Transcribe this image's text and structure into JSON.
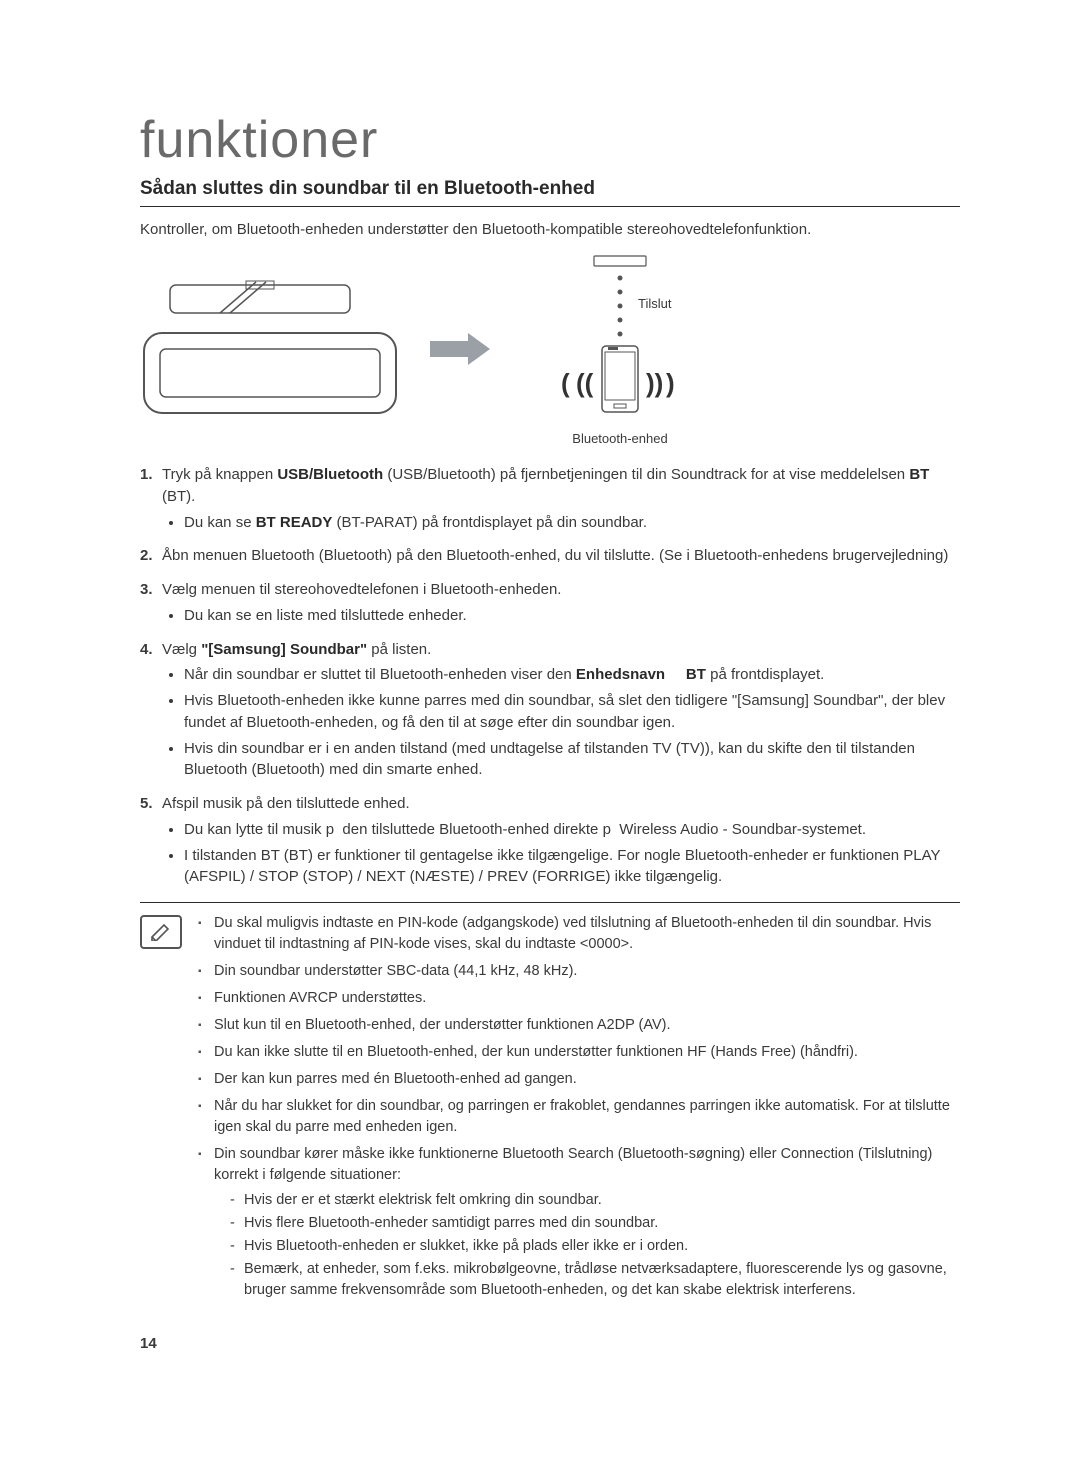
{
  "title": "funktioner",
  "heading": "Sådan sluttes din soundbar til en Bluetooth-enhed",
  "intro": "Kontroller, om Bluetooth-enheden understøtter den Bluetooth-kompatible stereohovedtelefonfunktion.",
  "diagram": {
    "connect_label": "Tilslut",
    "phone_caption": "Bluetooth-enhed"
  },
  "steps": [
    {
      "html": "Tryk på knappen <b>USB/Bluetooth</b> (USB/Bluetooth) på fjernbetjeningen til din Soundtrack for at vise meddelelsen <b>BT</b> (BT).",
      "sub": [
        "Du kan se <b>BT READY</b> (BT-PARAT) på frontdisplayet på din soundbar."
      ]
    },
    {
      "html": "Åbn menuen Bluetooth (Bluetooth) på den Bluetooth-enhed, du vil tilslutte. (Se i Bluetooth-enhedens brugervejledning)",
      "sub": []
    },
    {
      "html": "Vælg menuen til stereohovedtelefonen i Bluetooth-enheden.",
      "sub": [
        "Du kan se en liste med tilsluttede enheder."
      ]
    },
    {
      "html": "Vælg <b>\"[Samsung] Soundbar\"</b> på listen.",
      "sub": [
        "Når din soundbar er sluttet til Bluetooth-enheden viser den <b>Enhedsnavn &nbsp;&nbsp;&nbsp; BT</b> på frontdisplayet.",
        "Hvis Bluetooth-enheden ikke kunne parres med din soundbar, så slet den tidligere \"[Samsung] Soundbar\", der blev fundet af Bluetooth-enheden, og få den til at søge efter din soundbar igen.",
        "Hvis din soundbar er i en anden tilstand (med undtagelse af tilstanden TV (TV)), kan du skifte den til tilstanden Bluetooth (Bluetooth) med din smarte enhed."
      ]
    },
    {
      "html": "Afspil musik på den tilsluttede enhed.",
      "sub": [
        "Du kan lytte til musik p&nbsp; den tilsluttede Bluetooth-enhed direkte p&nbsp; Wireless Audio - Soundbar-systemet.",
        "I tilstanden BT (BT) er funktioner til gentagelse ikke tilgængelige. For nogle Bluetooth-enheder er funktionen PLAY (AFSPIL) / STOP (STOP) / NEXT (NÆSTE) / PREV (FORRIGE) ikke tilgængelig."
      ]
    }
  ],
  "notes": [
    {
      "text": "Du skal muligvis indtaste en PIN-kode (adgangskode) ved tilslutning af Bluetooth-enheden til din soundbar. Hvis vinduet til indtastning af PIN-kode vises, skal du indtaste <0000>."
    },
    {
      "text": "Din soundbar understøtter SBC-data (44,1 kHz, 48 kHz)."
    },
    {
      "text": "Funktionen AVRCP understøttes."
    },
    {
      "text": "Slut kun til en Bluetooth-enhed, der understøtter funktionen A2DP (AV)."
    },
    {
      "text": "Du kan ikke slutte til en Bluetooth-enhed, der kun understøtter funktionen HF (Hands Free) (håndfri)."
    },
    {
      "text": "Der kan kun parres med én Bluetooth-enhed ad gangen."
    },
    {
      "text": "Når du har slukket for din soundbar, og parringen er frakoblet, gendannes parringen ikke automatisk. For at tilslutte igen skal du parre med enheden igen."
    },
    {
      "text": "Din soundbar kører måske ikke funktionerne Bluetooth Search (Bluetooth-søgning) eller Connection (Tilslutning) korrekt i følgende situationer:",
      "dashes": [
        "Hvis der er et stærkt elektrisk felt omkring din soundbar.",
        "Hvis flere Bluetooth-enheder samtidigt parres med din soundbar.",
        "Hvis Bluetooth-enheden er slukket, ikke på plads eller ikke er i orden.",
        "Bemærk, at enheder, som f.eks. mikrobølgeovne, trådløse netværksadaptere, fluorescerende lys og gasovne, bruger samme frekvensområde som Bluetooth-enheden, og det kan skabe elektrisk interferens."
      ]
    }
  ],
  "page_number": "14"
}
